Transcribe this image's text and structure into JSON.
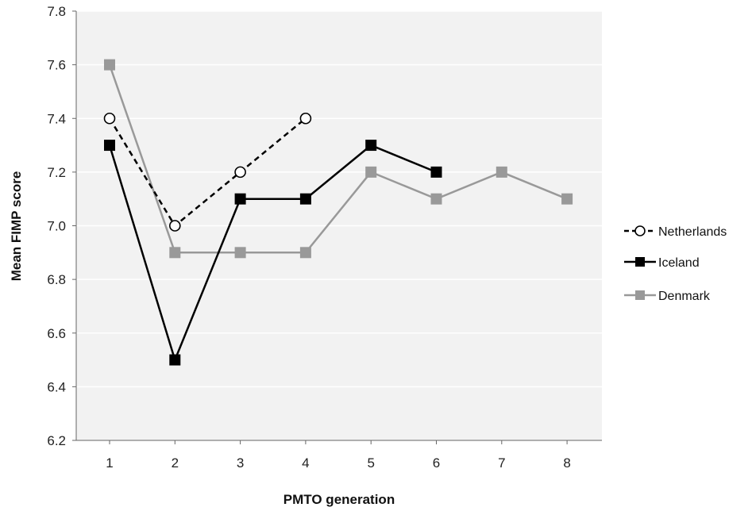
{
  "chart_data": {
    "type": "line",
    "title": "",
    "xlabel": "PMTO generation",
    "ylabel": "Mean FIMP score",
    "x": [
      1,
      2,
      3,
      4,
      5,
      6,
      7,
      8
    ],
    "x_tick_labels": [
      "1",
      "2",
      "3",
      "4",
      "5",
      "6",
      "7",
      "8"
    ],
    "ylim": [
      6.2,
      7.8
    ],
    "y_tick_labels": [
      "6.2",
      "6.4",
      "6.6",
      "6.8",
      "7.0",
      "7.2",
      "7.4",
      "7.6",
      "7.8"
    ],
    "grid": true,
    "legend_position": "right",
    "series": [
      {
        "name": "Netherlands",
        "x": [
          1,
          2,
          3,
          4
        ],
        "values": [
          7.4,
          7.0,
          7.2,
          7.4
        ],
        "color": "#000000",
        "line_style": "dashed",
        "marker": "open-circle"
      },
      {
        "name": "Iceland",
        "x": [
          1,
          2,
          3,
          4,
          5,
          6
        ],
        "values": [
          7.3,
          6.5,
          7.1,
          7.1,
          7.3,
          7.2
        ],
        "color": "#000000",
        "line_style": "solid",
        "marker": "filled-square"
      },
      {
        "name": "Denmark",
        "x": [
          1,
          2,
          3,
          4,
          5,
          6,
          7,
          8
        ],
        "values": [
          7.6,
          6.9,
          6.9,
          6.9,
          7.2,
          7.1,
          7.2,
          7.1
        ],
        "color": "#999999",
        "line_style": "solid",
        "marker": "filled-square"
      }
    ]
  }
}
